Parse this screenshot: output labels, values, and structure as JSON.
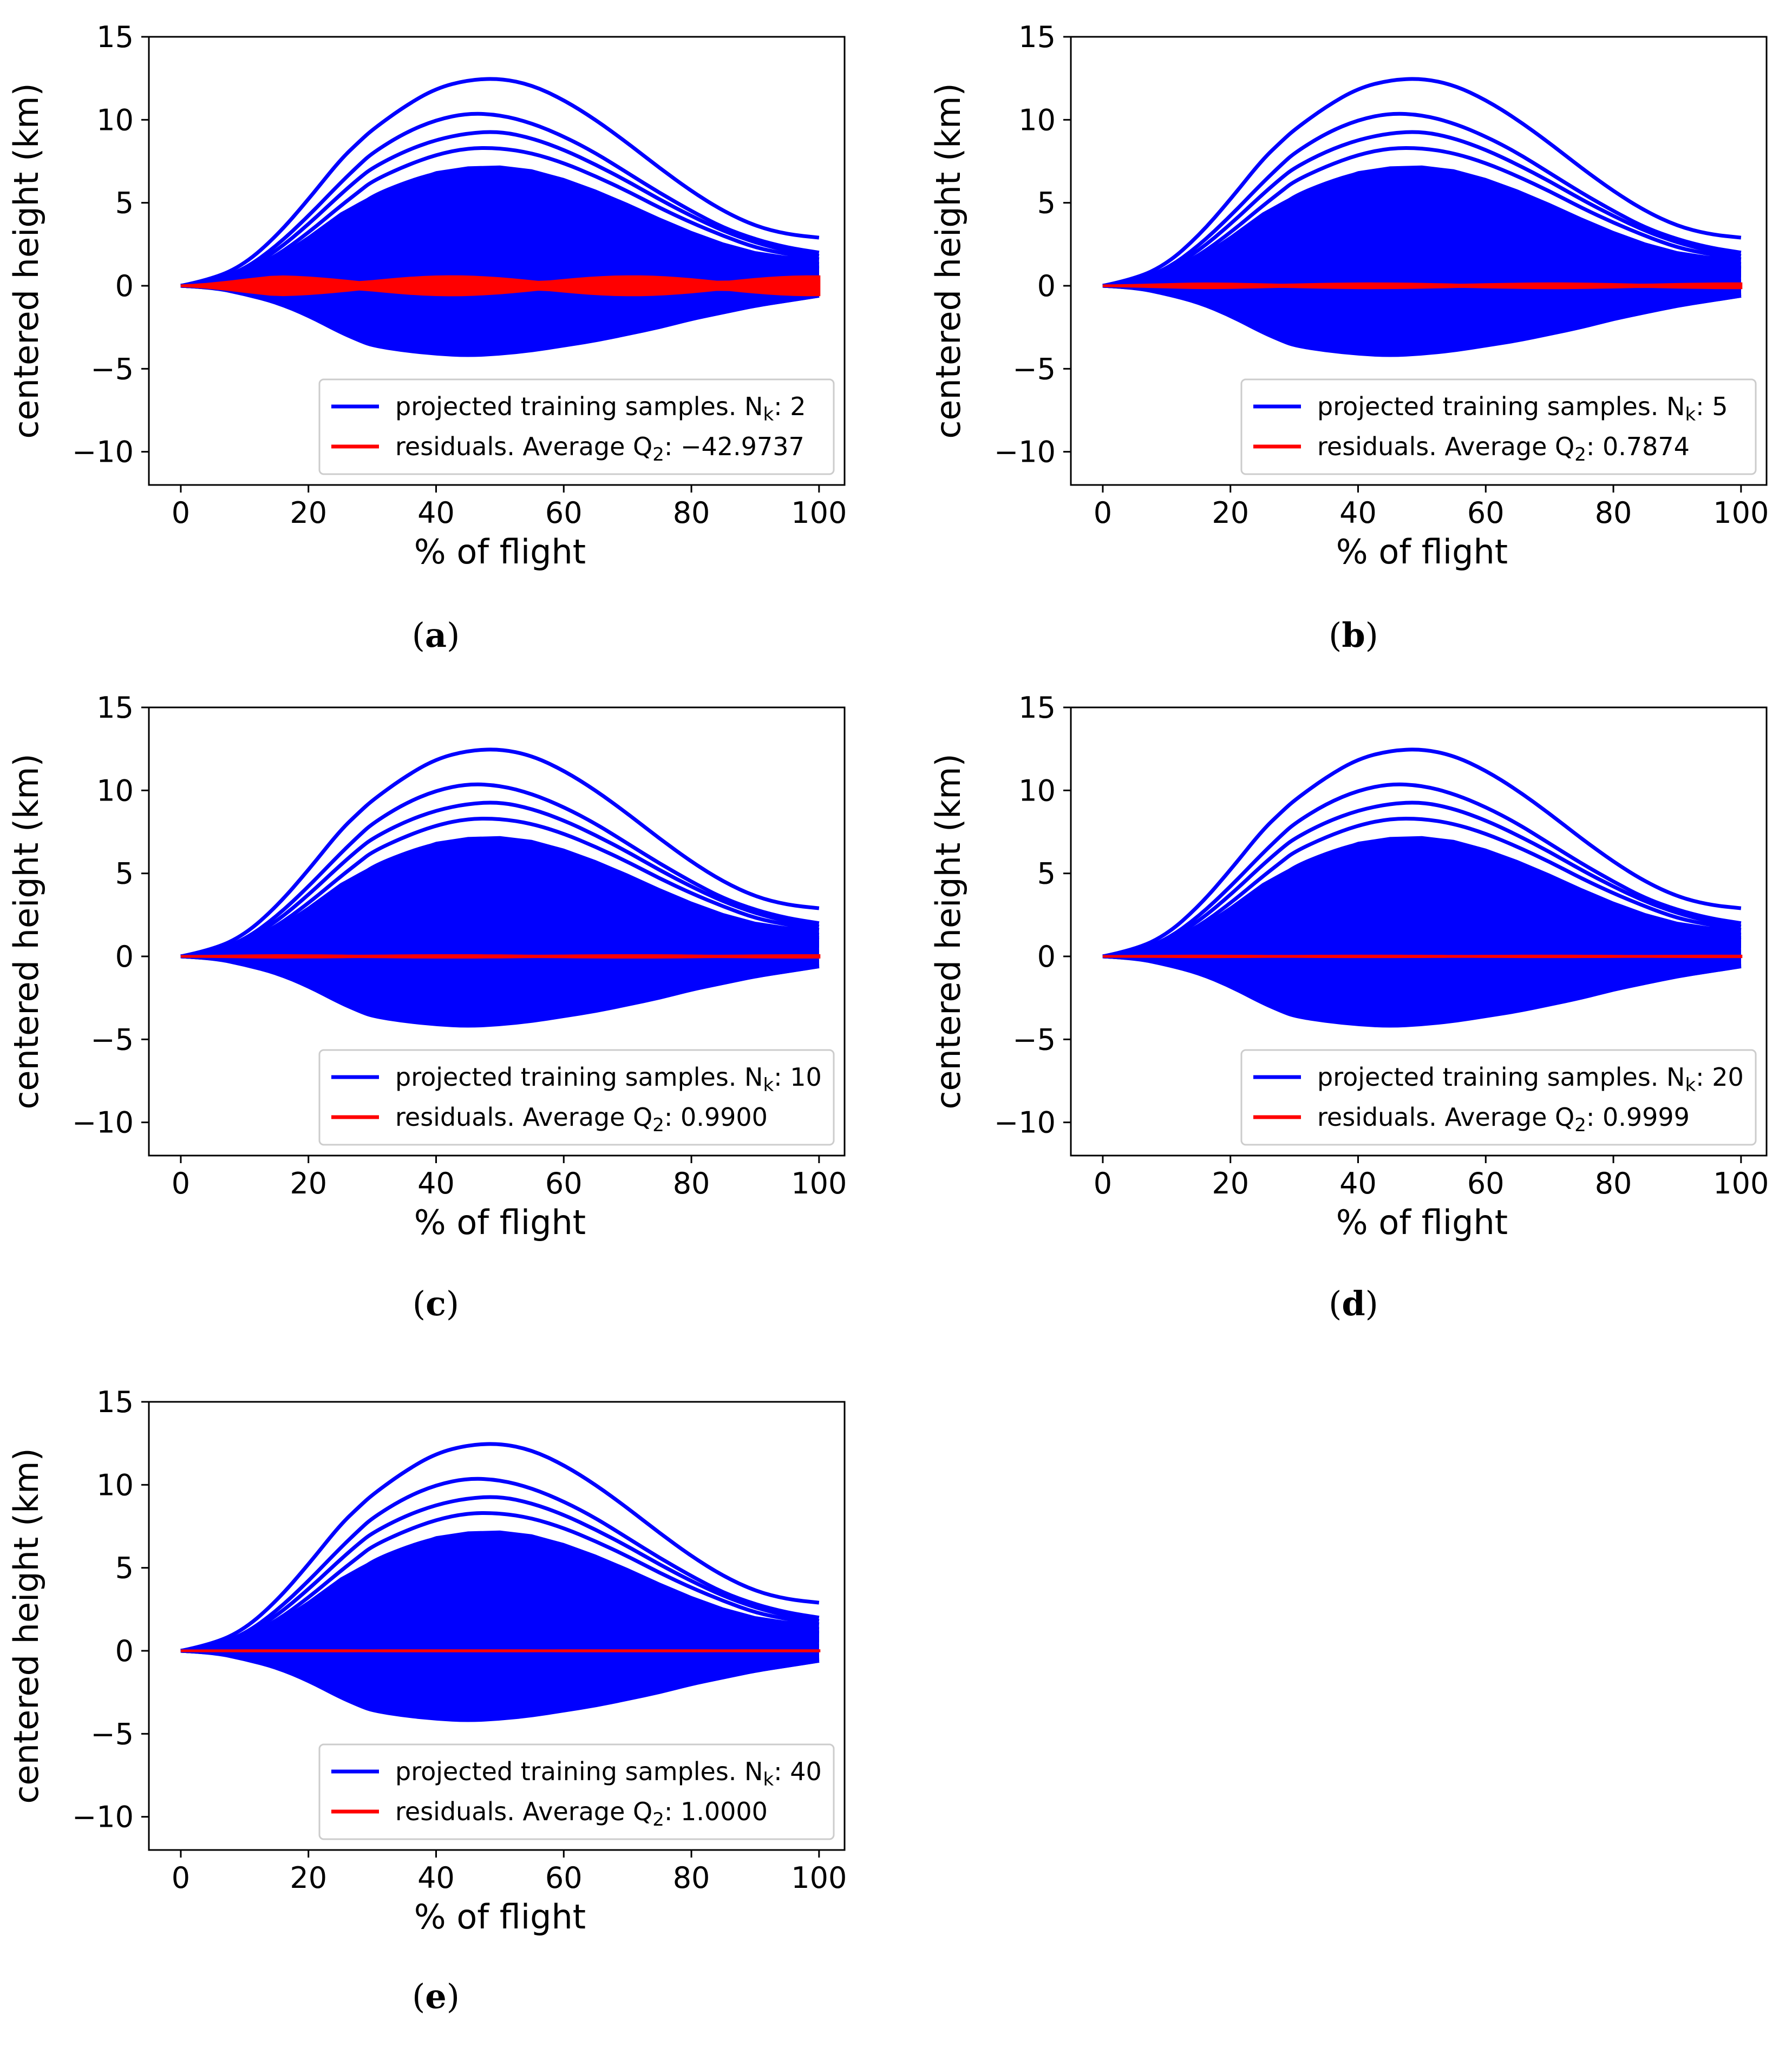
{
  "colors": {
    "samples": "#0000ff",
    "residuals": "#ff0000",
    "axis": "#000000",
    "legend_border": "#cccccc"
  },
  "chart_data": [
    {
      "type": "line",
      "panel": "a",
      "caption": "(a)",
      "xlabel": "% of flight",
      "ylabel": "centered height (km)",
      "xlim": [
        -5,
        104
      ],
      "ylim": [
        -12,
        15
      ],
      "xticks": [
        "0",
        "20",
        "40",
        "60",
        "80",
        "100"
      ],
      "yticks": [
        "15",
        "10",
        "5",
        "0",
        "−5",
        "−10"
      ],
      "legend_position": "lower-right",
      "legend": [
        {
          "series": "samples",
          "text": "projected training samples. N",
          "sub": "k",
          "value": ": 2"
        },
        {
          "series": "residuals",
          "text": "residuals. Average Q",
          "sub": "2",
          "value": ": −42.9737"
        }
      ],
      "nk": 2,
      "average_q2": -42.9737,
      "residual_spread": 0.55
    },
    {
      "type": "line",
      "panel": "b",
      "caption": "(b)",
      "xlabel": "% of flight",
      "ylabel": "centered height (km)",
      "xlim": [
        -5,
        104
      ],
      "ylim": [
        -12,
        15
      ],
      "xticks": [
        "0",
        "20",
        "40",
        "60",
        "80",
        "100"
      ],
      "yticks": [
        "15",
        "10",
        "5",
        "0",
        "−5",
        "−10"
      ],
      "legend_position": "lower-right",
      "legend": [
        {
          "series": "samples",
          "text": "projected training samples. N",
          "sub": "k",
          "value": ": 5"
        },
        {
          "series": "residuals",
          "text": "residuals. Average Q",
          "sub": "2",
          "value": ": 0.7874"
        }
      ],
      "nk": 5,
      "average_q2": 0.7874,
      "residual_spread": 0.12
    },
    {
      "type": "line",
      "panel": "c",
      "caption": "(c)",
      "xlabel": "% of flight",
      "ylabel": "centered height (km)",
      "xlim": [
        -5,
        104
      ],
      "ylim": [
        -12,
        15
      ],
      "xticks": [
        "0",
        "20",
        "40",
        "60",
        "80",
        "100"
      ],
      "yticks": [
        "15",
        "10",
        "5",
        "0",
        "−5",
        "−10"
      ],
      "legend_position": "lower-right",
      "legend": [
        {
          "series": "samples",
          "text": "projected training samples. N",
          "sub": "k",
          "value": ": 10"
        },
        {
          "series": "residuals",
          "text": "residuals. Average Q",
          "sub": "2",
          "value": ": 0.9900"
        }
      ],
      "nk": 10,
      "average_q2": 0.99,
      "residual_spread": 0.05
    },
    {
      "type": "line",
      "panel": "d",
      "caption": "(d)",
      "xlabel": "% of flight",
      "ylabel": "centered height (km)",
      "xlim": [
        -5,
        104
      ],
      "ylim": [
        -12,
        15
      ],
      "xticks": [
        "0",
        "20",
        "40",
        "60",
        "80",
        "100"
      ],
      "yticks": [
        "15",
        "10",
        "5",
        "0",
        "−5",
        "−10"
      ],
      "legend_position": "lower-right",
      "legend": [
        {
          "series": "samples",
          "text": "projected training samples. N",
          "sub": "k",
          "value": ": 20"
        },
        {
          "series": "residuals",
          "text": "residuals. Average Q",
          "sub": "2",
          "value": ": 0.9999"
        }
      ],
      "nk": 20,
      "average_q2": 0.9999,
      "residual_spread": 0.02
    },
    {
      "type": "line",
      "panel": "e",
      "caption": "(e)",
      "xlabel": "% of flight",
      "ylabel": "centered height (km)",
      "xlim": [
        -5,
        104
      ],
      "ylim": [
        -12,
        15
      ],
      "xticks": [
        "0",
        "20",
        "40",
        "60",
        "80",
        "100"
      ],
      "yticks": [
        "15",
        "10",
        "5",
        "0",
        "−5",
        "−10"
      ],
      "legend_position": "lower-right",
      "legend": [
        {
          "series": "samples",
          "text": "projected training samples. N",
          "sub": "k",
          "value": ": 40"
        },
        {
          "series": "residuals",
          "text": "residuals. Average Q",
          "sub": "2",
          "value": ": 1.0000"
        }
      ],
      "nk": 40,
      "average_q2": 1.0,
      "residual_spread": 0.01
    }
  ],
  "sample_profiles": {
    "x": [
      0,
      5,
      10,
      15,
      20,
      25,
      28,
      30,
      35,
      40,
      45,
      50,
      55,
      60,
      65,
      70,
      75,
      80,
      85,
      90,
      95,
      100
    ],
    "series": [
      {
        "name": "sample-1",
        "values": [
          0,
          0.4,
          1.3,
          3.0,
          5.2,
          7.6,
          8.7,
          9.4,
          10.8,
          11.9,
          12.4,
          12.5,
          12.1,
          11.2,
          10.0,
          8.6,
          7.1,
          5.7,
          4.5,
          3.6,
          3.1,
          2.9
        ]
      },
      {
        "name": "sample-2",
        "values": [
          0,
          0.3,
          1.0,
          2.4,
          4.2,
          6.2,
          7.3,
          8.0,
          9.2,
          10.0,
          10.4,
          10.3,
          9.8,
          9.0,
          8.0,
          6.8,
          5.6,
          4.5,
          3.5,
          2.8,
          2.3,
          2.0
        ]
      },
      {
        "name": "sample-3",
        "values": [
          0,
          0.3,
          0.9,
          2.1,
          3.7,
          5.5,
          6.5,
          7.1,
          8.1,
          8.8,
          9.2,
          9.3,
          8.9,
          8.2,
          7.3,
          6.3,
          5.2,
          4.2,
          3.3,
          2.6,
          2.1,
          1.8
        ]
      },
      {
        "name": "sample-4",
        "values": [
          0,
          0.2,
          0.8,
          1.8,
          3.2,
          4.8,
          5.7,
          6.3,
          7.2,
          7.9,
          8.3,
          8.3,
          8.0,
          7.4,
          6.6,
          5.7,
          4.7,
          3.8,
          3.0,
          2.3,
          1.9,
          1.6
        ]
      },
      {
        "name": "sample-5",
        "values": [
          0,
          0.2,
          0.6,
          1.5,
          2.7,
          4.0,
          4.8,
          5.4,
          6.2,
          6.8,
          7.0,
          7.0,
          6.7,
          6.2,
          5.5,
          4.7,
          3.9,
          3.1,
          2.4,
          1.9,
          1.5,
          1.3
        ]
      },
      {
        "name": "sample-6",
        "values": [
          0,
          0.2,
          0.6,
          1.3,
          2.4,
          3.6,
          4.3,
          4.8,
          5.5,
          6.0,
          6.3,
          6.3,
          6.0,
          5.5,
          4.9,
          4.2,
          3.5,
          2.8,
          2.2,
          1.7,
          1.3,
          1.1
        ]
      },
      {
        "name": "sample-7",
        "values": [
          0,
          0.1,
          0.5,
          1.2,
          2.1,
          3.2,
          3.8,
          4.3,
          4.9,
          5.3,
          5.5,
          5.5,
          5.3,
          4.9,
          4.4,
          3.8,
          3.1,
          2.5,
          1.9,
          1.5,
          1.2,
          1.0
        ]
      },
      {
        "name": "sample-8",
        "values": [
          0,
          0.1,
          0.4,
          1.0,
          1.8,
          2.8,
          3.3,
          3.7,
          4.2,
          4.6,
          4.8,
          4.8,
          4.6,
          4.3,
          3.8,
          3.3,
          2.7,
          2.2,
          1.7,
          1.3,
          1.0,
          0.9
        ]
      },
      {
        "name": "sample-9",
        "values": [
          0,
          0.1,
          0.4,
          0.9,
          1.6,
          2.4,
          2.9,
          3.2,
          3.7,
          4.0,
          4.2,
          4.2,
          4.0,
          3.7,
          3.3,
          2.9,
          2.4,
          1.9,
          1.5,
          1.2,
          0.9,
          0.8
        ]
      },
      {
        "name": "sample-10",
        "values": [
          0,
          0.1,
          0.3,
          0.7,
          1.3,
          2.0,
          2.4,
          2.7,
          3.1,
          3.4,
          3.5,
          3.5,
          3.4,
          3.1,
          2.8,
          2.4,
          2.0,
          1.6,
          1.3,
          1.0,
          0.8,
          0.7
        ]
      },
      {
        "name": "sample-11",
        "values": [
          0,
          0.1,
          0.3,
          0.6,
          1.1,
          1.6,
          1.9,
          2.2,
          2.5,
          2.8,
          2.9,
          2.9,
          2.8,
          2.6,
          2.3,
          2.0,
          1.7,
          1.4,
          1.1,
          0.9,
          0.7,
          0.6
        ]
      },
      {
        "name": "sample-12",
        "values": [
          0,
          0.1,
          0.2,
          0.5,
          0.8,
          1.2,
          1.5,
          1.7,
          1.9,
          2.1,
          2.2,
          2.2,
          2.1,
          2.0,
          1.8,
          1.6,
          1.3,
          1.1,
          0.9,
          0.7,
          0.6,
          0.5
        ]
      },
      {
        "name": "sample-13",
        "values": [
          0,
          0.0,
          0.1,
          0.3,
          0.5,
          0.8,
          0.9,
          1.0,
          1.2,
          1.3,
          1.4,
          1.4,
          1.3,
          1.2,
          1.1,
          1.0,
          0.8,
          0.7,
          0.6,
          0.5,
          0.4,
          0.3
        ]
      },
      {
        "name": "sample-14",
        "values": [
          0,
          0.0,
          0.1,
          0.1,
          0.2,
          0.3,
          0.4,
          0.4,
          0.5,
          0.5,
          0.6,
          0.6,
          0.5,
          0.5,
          0.5,
          0.4,
          0.4,
          0.3,
          0.3,
          0.2,
          0.2,
          0.2
        ]
      },
      {
        "name": "sample-15",
        "values": [
          0,
          -0.0,
          -0.1,
          -0.2,
          -0.4,
          -0.6,
          -0.7,
          -0.8,
          -0.9,
          -1.0,
          -1.0,
          -1.0,
          -1.0,
          -0.9,
          -0.8,
          -0.7,
          -0.6,
          -0.5,
          -0.4,
          -0.3,
          -0.2,
          -0.2
        ]
      },
      {
        "name": "sample-16",
        "values": [
          0,
          -0.1,
          -0.2,
          -0.5,
          -0.8,
          -1.2,
          -1.4,
          -1.6,
          -1.8,
          -1.9,
          -2.0,
          -2.0,
          -1.9,
          -1.8,
          -1.6,
          -1.4,
          -1.2,
          -1.0,
          -0.8,
          -0.6,
          -0.4,
          -0.3
        ]
      },
      {
        "name": "sample-17",
        "values": [
          0,
          -0.1,
          -0.3,
          -0.7,
          -1.2,
          -1.8,
          -2.2,
          -2.4,
          -2.7,
          -2.9,
          -3.0,
          -3.0,
          -2.9,
          -2.7,
          -2.4,
          -2.1,
          -1.8,
          -1.5,
          -1.2,
          -0.9,
          -0.6,
          -0.4
        ]
      },
      {
        "name": "sample-18",
        "values": [
          0,
          -0.1,
          -0.4,
          -0.9,
          -1.6,
          -2.4,
          -2.9,
          -3.2,
          -3.4,
          -3.6,
          -3.7,
          -3.6,
          -3.5,
          -3.3,
          -3.0,
          -2.7,
          -2.3,
          -1.9,
          -1.5,
          -1.1,
          -0.8,
          -0.5
        ]
      },
      {
        "name": "sample-19",
        "values": [
          0,
          -0.1,
          -0.5,
          -1.0,
          -1.8,
          -2.8,
          -3.3,
          -3.6,
          -3.9,
          -4.1,
          -4.2,
          -4.1,
          -3.9,
          -3.6,
          -3.3,
          -2.9,
          -2.5,
          -2.0,
          -1.6,
          -1.2,
          -0.9,
          -0.6
        ]
      },
      {
        "name": "sample-20",
        "values": [
          0,
          -0.1,
          -0.4,
          -1.0,
          -1.7,
          -2.6,
          -3.1,
          -3.4,
          -3.6,
          -3.8,
          -3.9,
          -3.8,
          -3.7,
          -3.5,
          -3.2,
          -2.8,
          -2.4,
          -2.0,
          -1.6,
          -1.2,
          -0.9,
          -0.6
        ]
      }
    ]
  }
}
